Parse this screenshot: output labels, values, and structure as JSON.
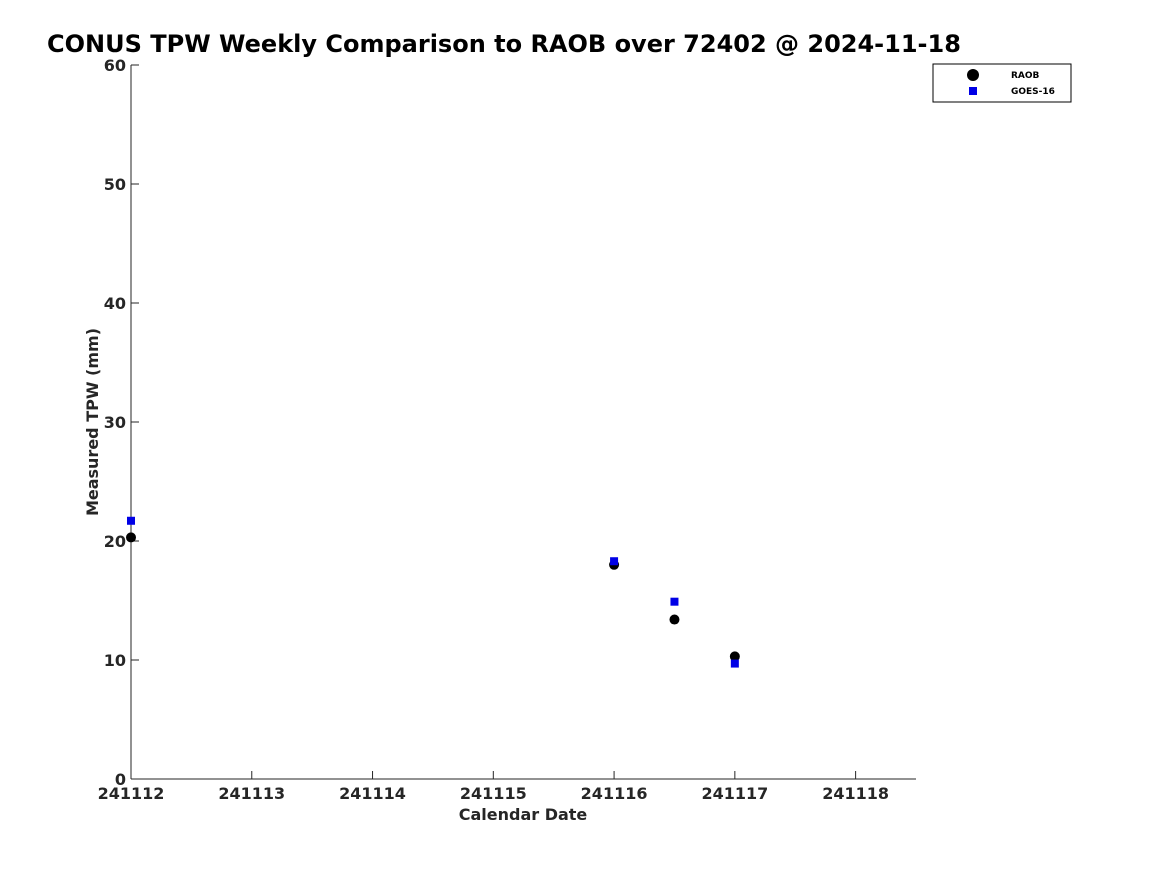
{
  "chart_data": {
    "type": "scatter",
    "title": "CONUS TPW Weekly Comparison to RAOB over 72402 @ 2024-11-18",
    "xlabel": "Calendar Date",
    "ylabel": "Measured TPW (mm)",
    "x_tick_labels": [
      "241112",
      "241113",
      "241114",
      "241115",
      "241116",
      "241117",
      "241118"
    ],
    "x_tick_values": [
      0,
      1,
      2,
      3,
      4,
      5,
      6
    ],
    "xlim": [
      0,
      6.5
    ],
    "ylim": [
      0,
      60
    ],
    "y_ticks": [
      0,
      10,
      20,
      30,
      40,
      50,
      60
    ],
    "grid": false,
    "legend_position": "top-right",
    "series": [
      {
        "name": "RAOB",
        "marker": "circle",
        "color": "#000000",
        "points": [
          {
            "x": 0,
            "y": 20.3
          },
          {
            "x": 4,
            "y": 18.0
          },
          {
            "x": 4.5,
            "y": 13.4
          },
          {
            "x": 5,
            "y": 10.3
          }
        ]
      },
      {
        "name": "GOES-16",
        "marker": "square",
        "color": "#0000e6",
        "points": [
          {
            "x": 0,
            "y": 21.7
          },
          {
            "x": 4,
            "y": 18.3
          },
          {
            "x": 4.5,
            "y": 14.9
          },
          {
            "x": 5,
            "y": 9.7
          }
        ]
      }
    ]
  }
}
